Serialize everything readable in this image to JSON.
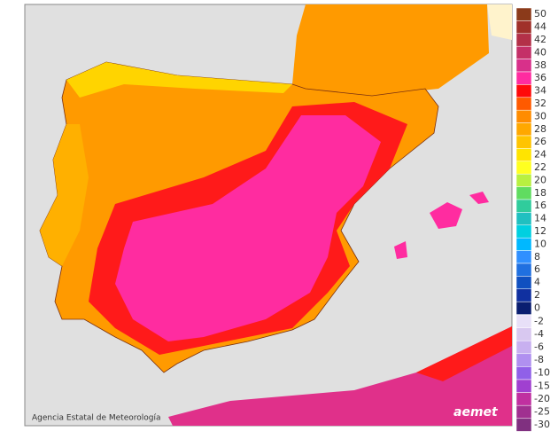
{
  "legend": {
    "warm": [
      {
        "label": "50",
        "color": "#8b3a1a"
      },
      {
        "label": "44",
        "color": "#a0302a"
      },
      {
        "label": "42",
        "color": "#b33048"
      },
      {
        "label": "40",
        "color": "#c43068"
      },
      {
        "label": "38",
        "color": "#d8308a"
      },
      {
        "label": "36",
        "color": "#ff2ca0"
      },
      {
        "label": "34",
        "color": "#ff0a0a"
      },
      {
        "label": "32",
        "color": "#ff5a00"
      },
      {
        "label": "30",
        "color": "#ff8c00"
      },
      {
        "label": "28",
        "color": "#ffa800"
      },
      {
        "label": "26",
        "color": "#ffc400"
      },
      {
        "label": "24",
        "color": "#ffe400"
      },
      {
        "label": "22",
        "color": "#ffff20"
      },
      {
        "label": "20",
        "color": "#b8f040"
      },
      {
        "label": "18",
        "color": "#60dc60"
      },
      {
        "label": "16",
        "color": "#30cc9c"
      },
      {
        "label": "14",
        "color": "#20c0c0"
      },
      {
        "label": "12",
        "color": "#00d0e0"
      },
      {
        "label": "10",
        "color": "#00b8ff"
      },
      {
        "label": "8",
        "color": "#3090ff"
      },
      {
        "label": "6",
        "color": "#2070e0"
      },
      {
        "label": "4",
        "color": "#1050c0"
      },
      {
        "label": "2",
        "color": "#1030a0"
      },
      {
        "label": "0",
        "color": "#0a1e70"
      }
    ],
    "cold": [
      {
        "label": "-2",
        "color": "#e8e0f8"
      },
      {
        "label": "-4",
        "color": "#d8c8f0"
      },
      {
        "label": "-6",
        "color": "#c8b0f0"
      },
      {
        "label": "-8",
        "color": "#b090f0"
      },
      {
        "label": "-10",
        "color": "#9060e8"
      },
      {
        "label": "-15",
        "color": "#a040d0"
      },
      {
        "label": "-20",
        "color": "#c030a0"
      },
      {
        "label": "-25",
        "color": "#a03090"
      },
      {
        "label": "-30",
        "color": "#803080"
      }
    ]
  },
  "credit": "Agencia Estatal de Meteorología",
  "logo": "aemet"
}
